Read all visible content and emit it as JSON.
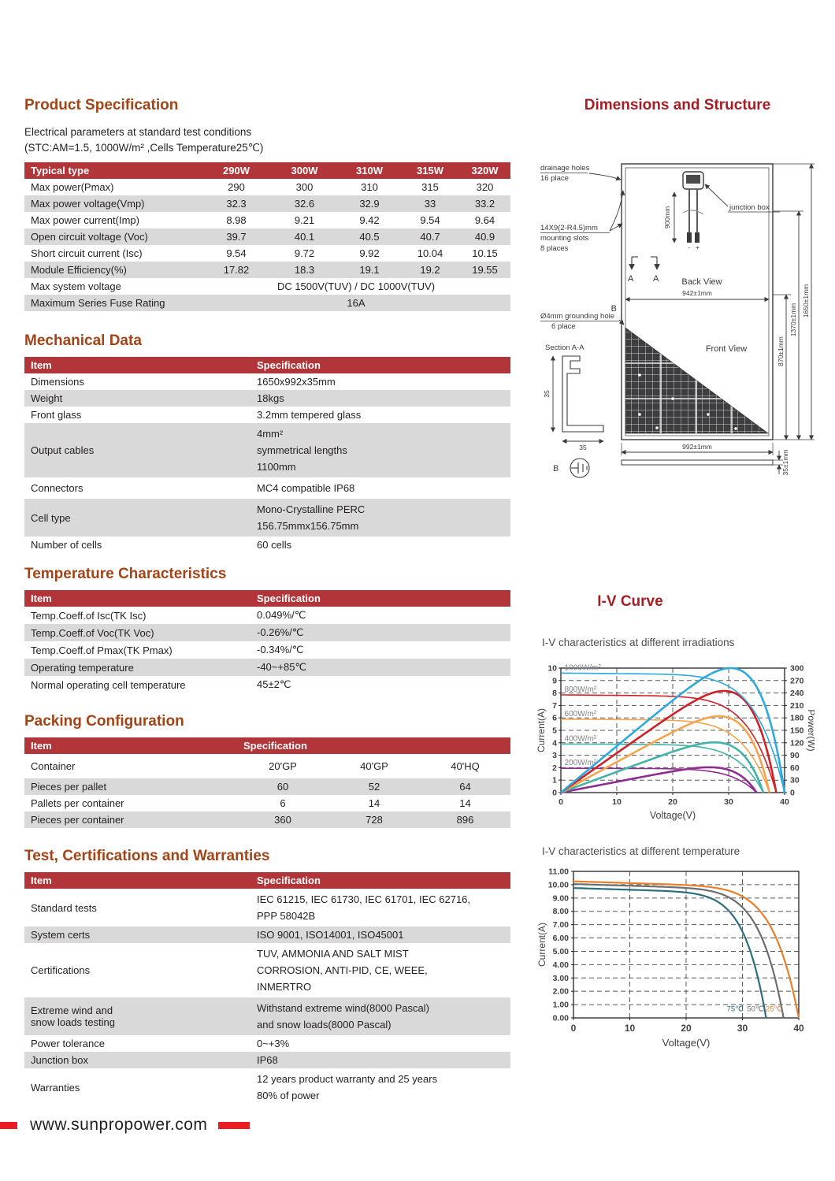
{
  "left": {
    "spec_title": "Product Specification",
    "sub1": "Electrical parameters at standard test conditions",
    "sub2": "(STC:AM=1.5, 1000W/m² ,Cells Temperature25℃)",
    "mech_title": "Mechanical Data",
    "temp_title": "Temperature Characteristics",
    "pack_title": "Packing Configuration",
    "cert_title": "Test, Certifications and Warranties"
  },
  "electrical": {
    "header": [
      "Typical type",
      "290W",
      "300W",
      "310W",
      "315W",
      "320W"
    ],
    "rows": [
      {
        "label": "Max power(Pmax)",
        "values": [
          "290",
          "300",
          "310",
          "315",
          "320"
        ]
      },
      {
        "label": "Max power voltage(Vmp)",
        "values": [
          "32.3",
          "32.6",
          "32.9",
          "33",
          "33.2"
        ]
      },
      {
        "label": "Max power current(Imp)",
        "values": [
          "8.98",
          "9.21",
          "9.42",
          "9.54",
          "9.64"
        ]
      },
      {
        "label": "Open circuit voltage (Voc)",
        "values": [
          "39.7",
          "40.1",
          "40.5",
          "40.7",
          "40.9"
        ]
      },
      {
        "label": "Short circuit current (Isc)",
        "values": [
          "9.54",
          "9.72",
          "9.92",
          "10.04",
          "10.15"
        ]
      },
      {
        "label": "Module Efficiency(%)",
        "values": [
          "17.82",
          "18.3",
          "19.1",
          "19.2",
          "19.55"
        ]
      }
    ],
    "merged": [
      {
        "label": "Max system voltage",
        "value": "DC 1500V(TUV) / DC 1000V(TUV)"
      },
      {
        "label": "Maximum Series Fuse Rating",
        "value": "16A"
      }
    ]
  },
  "mechanical": {
    "header": [
      "Item",
      "Specification"
    ],
    "rows": [
      {
        "label": "Dimensions",
        "lines": [
          "1650x992x35mm"
        ]
      },
      {
        "label": "Weight",
        "lines": [
          "18kgs"
        ]
      },
      {
        "label": "Front glass",
        "lines": [
          "3.2mm tempered glass"
        ]
      },
      {
        "label": "Output cables",
        "lines": [
          "4mm²",
          "symmetrical lengths",
          "1100mm"
        ]
      },
      {
        "label": "Connectors",
        "lines": [
          "MC4 compatible IP68"
        ]
      },
      {
        "label": "Cell type",
        "lines": [
          "Mono-Crystalline PERC",
          "156.75mmx156.75mm"
        ]
      },
      {
        "label": "Number of cells",
        "lines": [
          "60 cells"
        ]
      }
    ]
  },
  "temperature": {
    "header": [
      "Item",
      "Specification"
    ],
    "rows": [
      {
        "label": "Temp.Coeff.of Isc(TK Isc)",
        "value": "0.049%/℃"
      },
      {
        "label": "Temp.Coeff.of Voc(TK Voc)",
        "value": "-0.26%/℃"
      },
      {
        "label": "Temp.Coeff.of Pmax(TK Pmax)",
        "value": "-0.34%/℃"
      },
      {
        "label": "Operating temperature",
        "value": "-40~+85℃"
      },
      {
        "label": "Normal operating cell temperature",
        "value": "45±2℃"
      }
    ]
  },
  "packing": {
    "header": [
      "Item",
      "Specification"
    ],
    "rows": [
      {
        "label": "Container",
        "values": [
          "20'GP",
          "40'GP",
          "40'HQ"
        ]
      },
      {
        "label": "Pieces per pallet",
        "values": [
          "60",
          "52",
          "64"
        ]
      },
      {
        "label": "Pallets per container",
        "values": [
          "6",
          "14",
          "14"
        ]
      },
      {
        "label": "Pieces per container",
        "values": [
          "360",
          "728",
          "896"
        ]
      }
    ]
  },
  "certs": {
    "header": [
      "Item",
      "Specification"
    ],
    "rows": [
      {
        "label_lines": [
          "Standard tests"
        ],
        "lines": [
          "IEC 61215, IEC 61730, IEC 61701, IEC 62716,",
          "PPP 58042B"
        ]
      },
      {
        "label_lines": [
          "System certs"
        ],
        "lines": [
          "ISO 9001, ISO14001, ISO45001"
        ]
      },
      {
        "label_lines": [
          "Certifications"
        ],
        "lines": [
          "TUV, AMMONIA AND SALT MIST",
          "CORROSION, ANTI-PID, CE, WEEE,",
          "INMERTRO"
        ]
      },
      {
        "label_lines": [
          "Extreme wind and",
          "snow loads testing"
        ],
        "lines": [
          "Withstand extreme wind(8000 Pascal)",
          "and snow loads(8000 Pascal)"
        ]
      },
      {
        "label_lines": [
          "Power tolerance"
        ],
        "lines": [
          "0~+3%"
        ]
      },
      {
        "label_lines": [
          "Junction box"
        ],
        "lines": [
          "IP68"
        ]
      },
      {
        "label_lines": [
          "Warranties"
        ],
        "lines": [
          "12 years product warranty and 25 years",
          "80% of power"
        ]
      }
    ]
  },
  "right": {
    "dim_title": "Dimensions and Structure",
    "iv_title": "I-V Curve",
    "caption1": "I-V characteristics at different irradiations",
    "caption2": "I-V characteristics at different temperature"
  },
  "diagram": {
    "drainage_1": "drainage holes",
    "drainage_2": "16 place",
    "slots_1": "14X9(2-R4.5)mm",
    "slots_2": "mounting slots",
    "slots_3": "8 places",
    "ground_1": "Ø4mm grounding hole",
    "ground_2": "6 place",
    "junction": "junction box",
    "back_view": "Back View",
    "front_view": "Front View",
    "section": "Section A-A",
    "dim_900": "900mm",
    "dim_942": "942±1mm",
    "dim_992": "992±1mm",
    "dim_870": "870±1mm",
    "dim_1370": "1370±1mm",
    "dim_1650": "1650±1mm",
    "dim_35_side": "35±1mm",
    "dim_35_v": "35",
    "dim_35_h": "35",
    "label_a1": "A",
    "label_a2": "A",
    "label_b1": "B",
    "label_b2": "B",
    "minus": "-",
    "plus": "+"
  },
  "footer": {
    "url": "www.sunpropower.com"
  },
  "colors": {
    "table_header": "#b23539",
    "stripe": "#d9d9d9",
    "heading_left": "#a34417",
    "heading_right": "#a51e23",
    "footer_red": "#ec1c24"
  },
  "chart_data": [
    {
      "type": "line",
      "title": "I-V characteristics at different irradiations",
      "xlabel": "Voltage(V)",
      "ylabel_left": "Current(A)",
      "ylabel_right": "Power(W)",
      "xlim": [
        0,
        40
      ],
      "ylim_left": [
        0,
        10
      ],
      "ylim_right": [
        0,
        300
      ],
      "grid": "dashed",
      "legend_position": "inside-left",
      "x_ticks": [
        "0",
        "10",
        "20",
        "30",
        "40"
      ],
      "y_ticks_left": [
        "0",
        "1",
        "2",
        "3",
        "4",
        "5",
        "6",
        "7",
        "8",
        "9",
        "10"
      ],
      "y_ticks_right": [
        "0",
        "30",
        "60",
        "90",
        "120",
        "150",
        "180",
        "210",
        "240",
        "270",
        "300"
      ],
      "note": "each irradiance has a flat I-V curve (left axis) and a peaked P-V curve (right axis)",
      "series": [
        {
          "name": "1000W/m²",
          "color": "#2ea9dd",
          "isc": 9.6,
          "voc": 40,
          "pmax": 300,
          "vmp": 30,
          "slope": 0.004,
          "knee": 8
        },
        {
          "name": "800W/m²",
          "color": "#cf2127",
          "isc": 7.85,
          "voc": 38.5,
          "pmax": 245,
          "vmp": 29,
          "slope": 0.004,
          "knee": 8
        },
        {
          "name": "600W/m²",
          "color": "#f3a64f",
          "isc": 5.9,
          "voc": 37.3,
          "pmax": 184,
          "vmp": 28.5,
          "slope": 0.003,
          "knee": 8
        },
        {
          "name": "400W/m²",
          "color": "#43b3a9",
          "isc": 3.9,
          "voc": 36.2,
          "pmax": 121,
          "vmp": 28,
          "slope": 0.002,
          "knee": 8
        },
        {
          "name": "200W/m²",
          "color": "#8e2c90",
          "isc": 1.95,
          "voc": 35,
          "pmax": 61,
          "vmp": 29,
          "slope": 0.001,
          "knee": 8
        }
      ]
    },
    {
      "type": "line",
      "title": "I-V characteristics at different temperature",
      "xlabel": "Voltage(V)",
      "ylabel": "Current(A)",
      "xlim": [
        0,
        40
      ],
      "ylim": [
        0,
        11
      ],
      "grid": "dashed",
      "x_ticks": [
        "0",
        "10",
        "20",
        "30",
        "40"
      ],
      "y_ticks": [
        "0.00",
        "1.00",
        "2.00",
        "3.00",
        "4.00",
        "5.00",
        "6.00",
        "7.00",
        "8.00",
        "9.00",
        "10.00",
        "11.00"
      ],
      "series": [
        {
          "name": "75℃",
          "color": "#2c6e7e",
          "isc": 9.75,
          "voc": 34.2,
          "slope": 0.013,
          "knee": 9,
          "lx": 28.7,
          "ly": 0.5
        },
        {
          "name": "50℃",
          "color": "#6d6e71",
          "isc": 10.05,
          "voc": 37.3,
          "slope": 0.013,
          "knee": 9,
          "lx": 32.3,
          "ly": 0.5
        },
        {
          "name": "25℃",
          "color": "#e8802b",
          "isc": 10.25,
          "voc": 40,
          "slope": 0.013,
          "knee": 9,
          "lx": 35.6,
          "ly": 0.5
        }
      ]
    }
  ]
}
